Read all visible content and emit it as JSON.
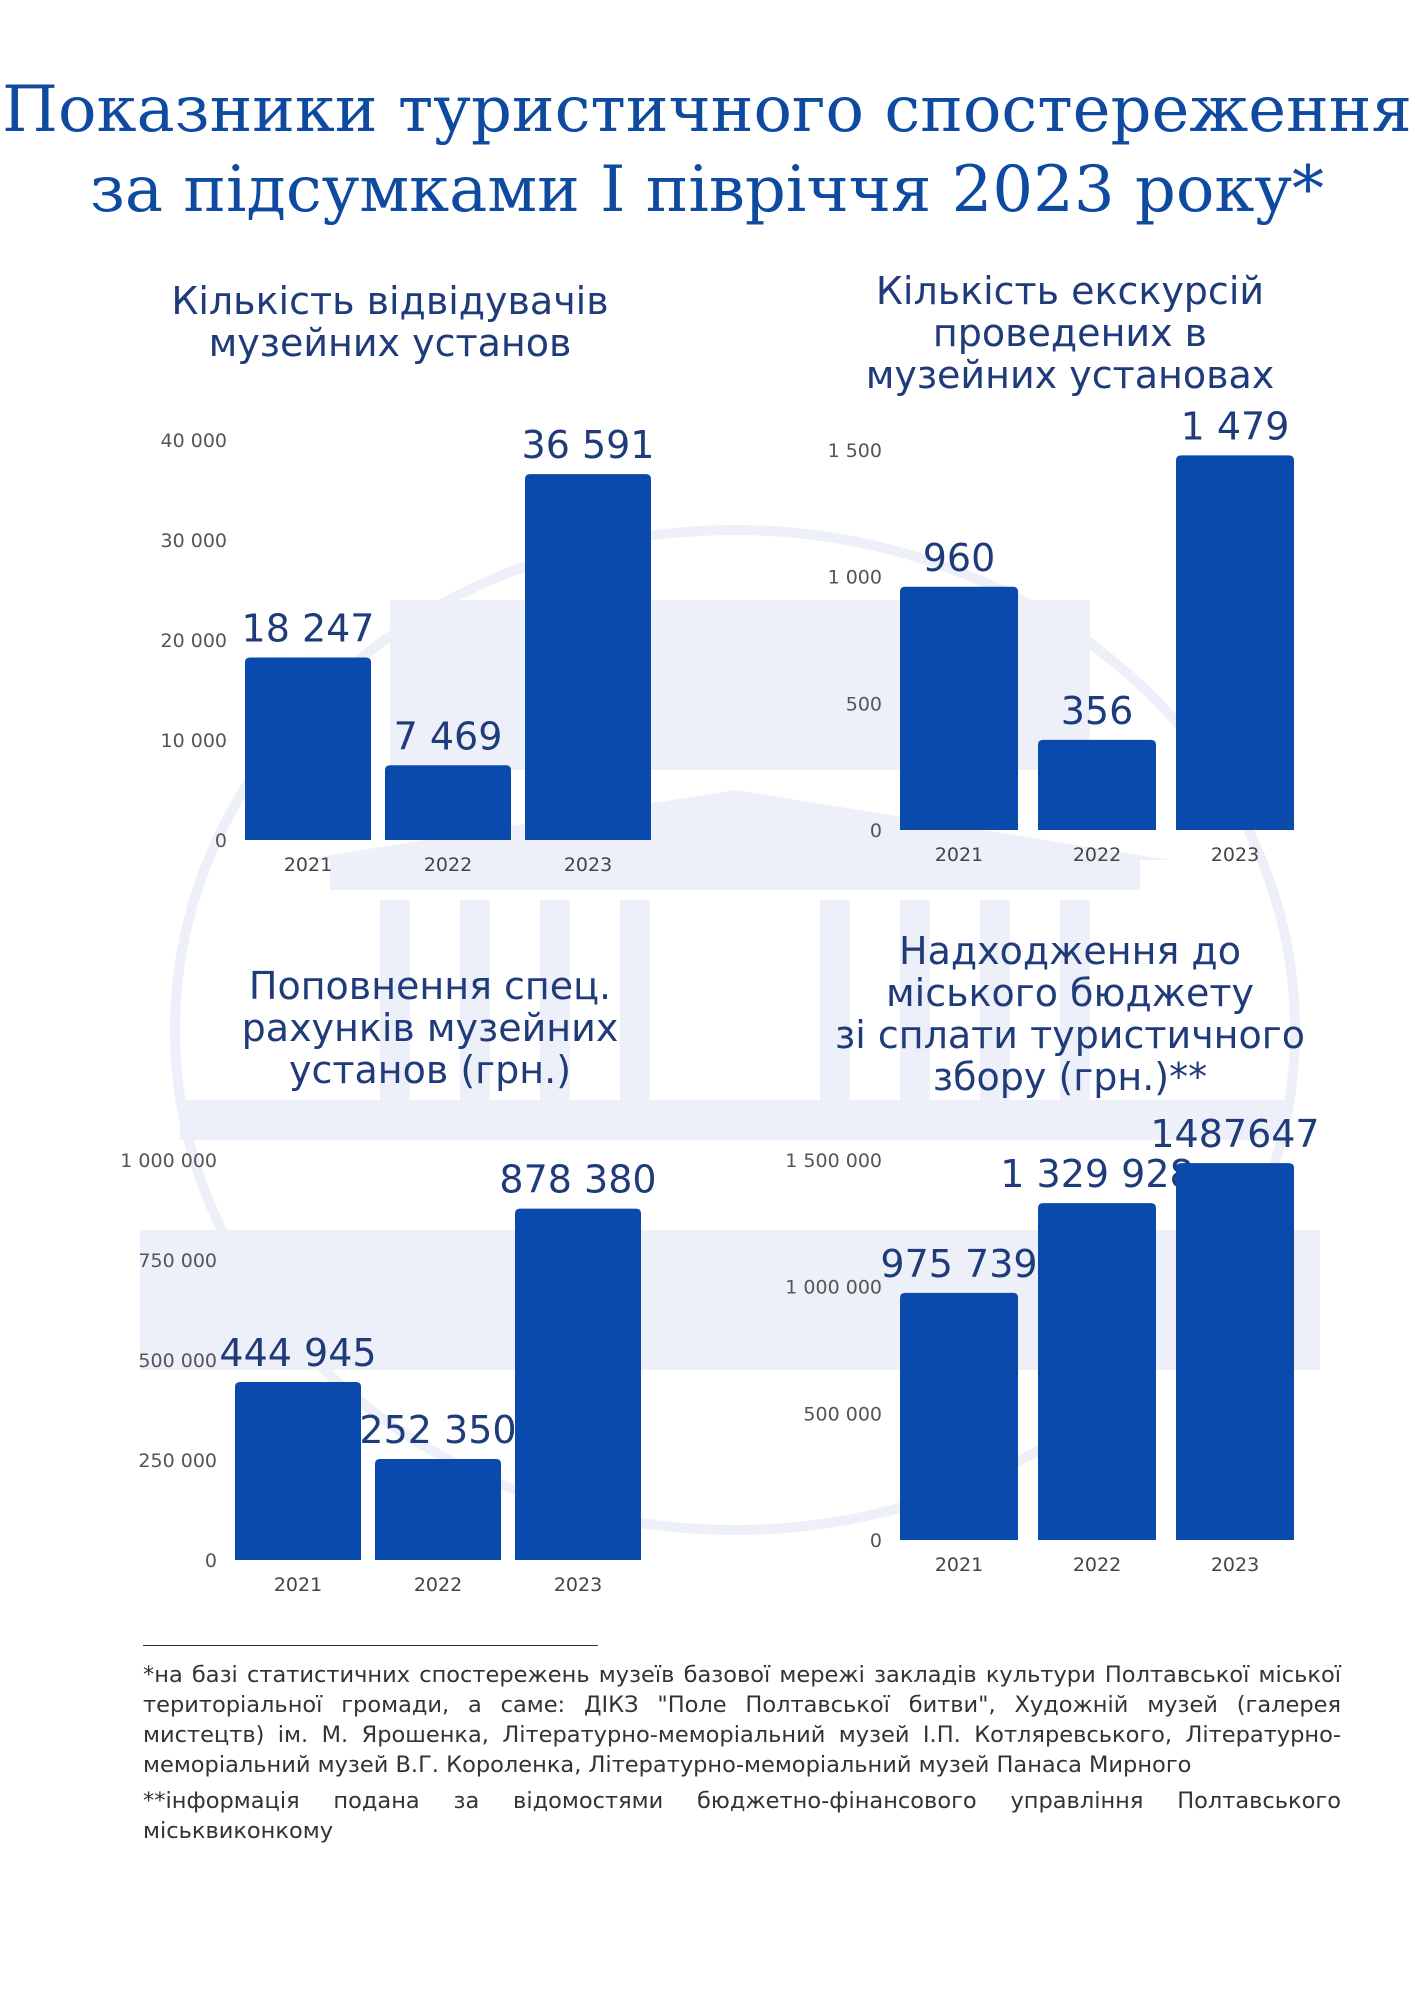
{
  "title": {
    "line1": "Показники туристичного спостереження",
    "line2": "за підсумками І півріччя 2023 року*"
  },
  "colors": {
    "bar": "#0a4aad",
    "title": "#0d4aa0",
    "watermark": "#eef0f9"
  },
  "chart_data": [
    {
      "type": "bar",
      "title_lines": [
        "Кількість відвідувачів",
        "музейних установ"
      ],
      "categories": [
        "2021",
        "2022",
        "2023"
      ],
      "values": [
        18247,
        7469,
        36591
      ],
      "value_labels": [
        "18 247",
        "7 469",
        "36 591"
      ],
      "yticks": [
        0,
        10000,
        20000,
        30000,
        40000
      ],
      "ytick_labels": [
        "0",
        "10 000",
        "20 000",
        "30 000",
        "40 000"
      ],
      "ylim": [
        0,
        40000
      ],
      "grid": false
    },
    {
      "type": "bar",
      "title_lines": [
        "Кількість екскурсій",
        "проведених в",
        "музейних установах"
      ],
      "categories": [
        "2021",
        "2022",
        "2023"
      ],
      "values": [
        960,
        356,
        1479
      ],
      "value_labels": [
        "960",
        "356",
        "1 479"
      ],
      "yticks": [
        0,
        500,
        1000,
        1500
      ],
      "ytick_labels": [
        "0",
        "500",
        "1 000",
        "1 500"
      ],
      "ylim": [
        0,
        1500
      ],
      "grid": false
    },
    {
      "type": "bar",
      "title_lines": [
        "Поповнення спец.",
        "рахунків музейних",
        "установ (грн.)"
      ],
      "categories": [
        "2021",
        "2022",
        "2023"
      ],
      "values": [
        444945,
        252350,
        878380
      ],
      "value_labels": [
        "444 945",
        "252 350",
        "878 380"
      ],
      "yticks": [
        0,
        250000,
        500000,
        750000,
        1000000
      ],
      "ytick_labels": [
        "0",
        "250 000",
        "500 000",
        "750 000",
        "1 000 000"
      ],
      "ylim": [
        0,
        1000000
      ],
      "grid": false
    },
    {
      "type": "bar",
      "title_lines": [
        "Надходження до",
        "міського бюджету",
        "зі сплати туристичного",
        "збору (грн.)**"
      ],
      "categories": [
        "2021",
        "2022",
        "2023"
      ],
      "values": [
        975739,
        1329928,
        1487647
      ],
      "value_labels": [
        "975 739",
        "1 329 928",
        "1487647"
      ],
      "yticks": [
        0,
        500000,
        1000000,
        1500000
      ],
      "ytick_labels": [
        "0",
        "500 000",
        "1 000 000",
        "1 500 000"
      ],
      "ylim": [
        0,
        1500000
      ],
      "grid": false
    }
  ],
  "footnotes": {
    "note1": "*на базі статистичних спостережень музеїв базової мережі закладів культури Полтавської міської територіальної громади, а саме: ДІКЗ \"Поле Полтавської битви\", Художній музей (галерея мистецтв) ім. М. Ярошенка, Літературно-меморіальний музей І.П. Котляревського, Літературно-меморіальний музей В.Г. Короленка, Літературно-меморіальний музей Панаса Мирного",
    "note2": "**інформація подана за відомостями бюджетно-фінансового управління Полтавського міськвиконкому"
  }
}
